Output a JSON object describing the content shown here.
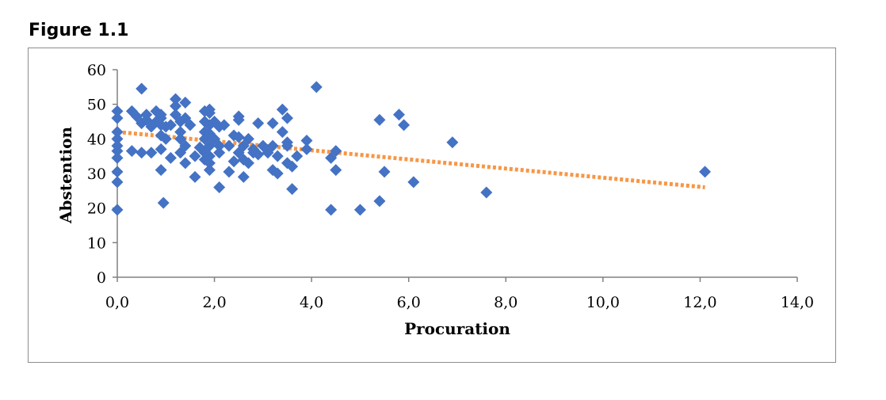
{
  "figure": {
    "title": "Figure 1.1"
  },
  "chart_data": {
    "type": "scatter",
    "xlabel": "Procuration",
    "ylabel": "Abstention",
    "xlim": [
      0,
      14
    ],
    "ylim": [
      0,
      60
    ],
    "x_ticks": [
      "0,0",
      "2,0",
      "4,0",
      "6,0",
      "8,0",
      "10,0",
      "12,0",
      "14,0"
    ],
    "y_ticks": [
      "0",
      "10",
      "20",
      "30",
      "40",
      "50",
      "60"
    ],
    "grid": false,
    "legend": "none",
    "colors": {
      "points": "#4472C4",
      "trendline": "#F79646"
    },
    "trendline": {
      "type": "linear",
      "style": "dotted",
      "x": [
        0,
        12.1
      ],
      "y": [
        42,
        26
      ]
    },
    "points": [
      [
        0.0,
        19.5
      ],
      [
        0.0,
        27.5
      ],
      [
        0.0,
        30.5
      ],
      [
        0.0,
        34.5
      ],
      [
        0.0,
        36.5
      ],
      [
        0.0,
        38
      ],
      [
        0.0,
        40
      ],
      [
        0.0,
        42
      ],
      [
        0.0,
        46
      ],
      [
        0.0,
        48
      ],
      [
        0.3,
        36.5
      ],
      [
        0.3,
        48
      ],
      [
        0.4,
        46.5
      ],
      [
        0.5,
        54.5
      ],
      [
        0.5,
        44.5
      ],
      [
        0.5,
        36
      ],
      [
        0.6,
        47
      ],
      [
        0.6,
        45.5
      ],
      [
        0.7,
        43.5
      ],
      [
        0.7,
        36
      ],
      [
        0.8,
        48
      ],
      [
        0.8,
        45
      ],
      [
        0.9,
        47
      ],
      [
        0.9,
        46
      ],
      [
        0.9,
        44
      ],
      [
        0.9,
        41
      ],
      [
        0.9,
        37
      ],
      [
        0.9,
        31
      ],
      [
        0.95,
        21.5
      ],
      [
        1.0,
        43.5
      ],
      [
        1.0,
        40
      ],
      [
        1.1,
        44
      ],
      [
        1.1,
        34.5
      ],
      [
        1.2,
        51.5
      ],
      [
        1.2,
        49.5
      ],
      [
        1.2,
        47
      ],
      [
        1.3,
        45
      ],
      [
        1.3,
        42
      ],
      [
        1.3,
        40
      ],
      [
        1.3,
        36
      ],
      [
        1.4,
        50.5
      ],
      [
        1.4,
        46
      ],
      [
        1.4,
        38
      ],
      [
        1.4,
        33
      ],
      [
        1.5,
        44
      ],
      [
        1.6,
        35
      ],
      [
        1.6,
        29
      ],
      [
        1.7,
        37.5
      ],
      [
        1.8,
        48
      ],
      [
        1.8,
        45
      ],
      [
        1.8,
        42
      ],
      [
        1.8,
        40
      ],
      [
        1.8,
        36
      ],
      [
        1.8,
        34
      ],
      [
        1.9,
        48.5
      ],
      [
        1.9,
        47.5
      ],
      [
        1.9,
        44
      ],
      [
        1.9,
        41.5
      ],
      [
        1.9,
        38
      ],
      [
        1.9,
        35
      ],
      [
        1.9,
        33
      ],
      [
        1.9,
        31
      ],
      [
        2.0,
        45
      ],
      [
        2.0,
        40
      ],
      [
        2.1,
        43.5
      ],
      [
        2.1,
        38
      ],
      [
        2.1,
        36
      ],
      [
        2.1,
        26
      ],
      [
        2.2,
        44
      ],
      [
        2.3,
        30.5
      ],
      [
        2.3,
        38
      ],
      [
        2.4,
        41
      ],
      [
        2.4,
        33.5
      ],
      [
        2.5,
        46.5
      ],
      [
        2.5,
        45.5
      ],
      [
        2.5,
        40.5
      ],
      [
        2.5,
        36
      ],
      [
        2.6,
        38
      ],
      [
        2.6,
        34
      ],
      [
        2.6,
        29
      ],
      [
        2.7,
        40
      ],
      [
        2.7,
        33
      ],
      [
        2.8,
        37
      ],
      [
        2.8,
        36
      ],
      [
        2.9,
        44.5
      ],
      [
        2.9,
        35.5
      ],
      [
        3.0,
        38
      ],
      [
        3.1,
        36
      ],
      [
        3.2,
        44.5
      ],
      [
        3.2,
        38
      ],
      [
        3.2,
        31
      ],
      [
        3.3,
        35
      ],
      [
        3.3,
        30
      ],
      [
        3.4,
        48.5
      ],
      [
        3.4,
        42
      ],
      [
        3.5,
        46
      ],
      [
        3.5,
        39
      ],
      [
        3.5,
        38
      ],
      [
        3.5,
        33
      ],
      [
        3.6,
        32
      ],
      [
        3.6,
        25.5
      ],
      [
        3.7,
        35
      ],
      [
        3.9,
        37
      ],
      [
        3.9,
        39.5
      ],
      [
        4.1,
        55
      ],
      [
        4.4,
        34.5
      ],
      [
        4.4,
        19.5
      ],
      [
        4.5,
        31
      ],
      [
        4.5,
        36.5
      ],
      [
        5.0,
        19.5
      ],
      [
        5.4,
        45.5
      ],
      [
        5.4,
        22
      ],
      [
        5.5,
        30.5
      ],
      [
        5.8,
        47
      ],
      [
        5.9,
        44
      ],
      [
        6.1,
        27.5
      ],
      [
        6.9,
        39
      ],
      [
        7.6,
        24.5
      ],
      [
        12.1,
        30.5
      ]
    ]
  }
}
